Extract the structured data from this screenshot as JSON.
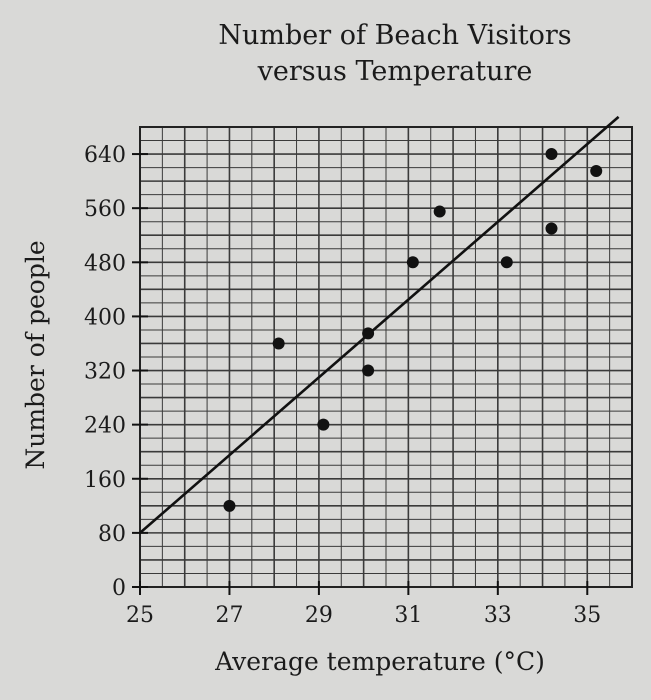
{
  "chart_data": {
    "type": "scatter",
    "title_lines": [
      "Number of Beach Visitors",
      "versus Temperature"
    ],
    "xlabel": "Average temperature (°C)",
    "ylabel": "Number of people",
    "xlim": [
      25,
      36
    ],
    "ylim": [
      0,
      680
    ],
    "x_ticks": [
      25,
      27,
      29,
      31,
      33,
      35
    ],
    "y_ticks": [
      0,
      80,
      160,
      240,
      320,
      400,
      480,
      560,
      640
    ],
    "grid": true,
    "points": [
      {
        "x": 27,
        "y": 120
      },
      {
        "x": 28.1,
        "y": 360
      },
      {
        "x": 29.1,
        "y": 240
      },
      {
        "x": 30.1,
        "y": 375
      },
      {
        "x": 30.1,
        "y": 320
      },
      {
        "x": 31.1,
        "y": 480
      },
      {
        "x": 31.7,
        "y": 555
      },
      {
        "x": 33.2,
        "y": 480
      },
      {
        "x": 34.2,
        "y": 640
      },
      {
        "x": 34.2,
        "y": 530
      },
      {
        "x": 35.2,
        "y": 615
      }
    ],
    "trend_line": {
      "x": [
        25,
        35.7
      ],
      "y": [
        80,
        695
      ]
    },
    "colors": {
      "ink": "#111111",
      "background": "#d9d9d7"
    }
  }
}
